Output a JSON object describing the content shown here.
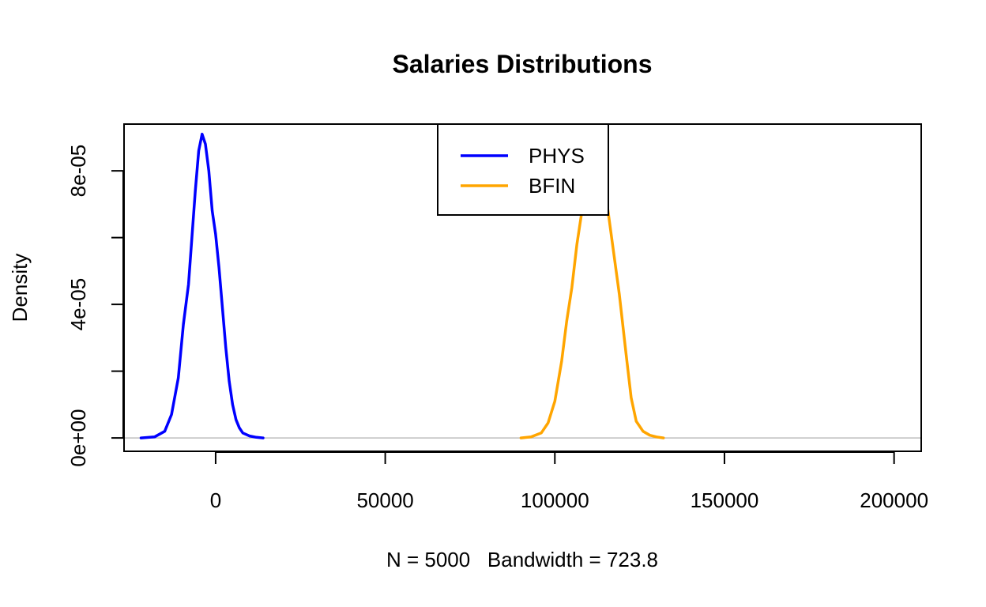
{
  "chart_data": {
    "type": "line",
    "title": "Salaries Distributions",
    "xlabel": "N = 5000   Bandwidth = 723.8",
    "ylabel": "Density",
    "xlim": [
      -27000,
      208000
    ],
    "ylim": [
      -4e-06,
      9.4e-05
    ],
    "x_ticks": [
      0,
      50000,
      100000,
      150000,
      200000
    ],
    "x_tick_labels": [
      "0",
      "50000",
      "100000",
      "150000",
      "200000"
    ],
    "y_ticks": [
      0,
      2e-05,
      4e-05,
      6e-05,
      8e-05
    ],
    "y_tick_labels": [
      "0e+00",
      "",
      "4e-05",
      "",
      "8e-05"
    ],
    "baseline": 0,
    "baseline_color": "#bebebe",
    "grid": false,
    "legend": {
      "position": "top-center",
      "entries": [
        "PHYS",
        "BFIN"
      ]
    },
    "series": [
      {
        "name": "PHYS",
        "color": "#0000ff",
        "x": [
          -22000,
          -18000,
          -15000,
          -13000,
          -11000,
          -9500,
          -8000,
          -7000,
          -6000,
          -5000,
          -4000,
          -3000,
          -2000,
          -1000,
          0,
          1000,
          2000,
          3000,
          4000,
          5000,
          6000,
          7000,
          8000,
          10000,
          12000,
          14000
        ],
        "y": [
          0.0,
          3e-07,
          2e-06,
          7e-06,
          1.8e-05,
          3.4e-05,
          4.6e-05,
          6e-05,
          7.4e-05,
          8.6e-05,
          9.1e-05,
          8.8e-05,
          8e-05,
          6.8e-05,
          6.1e-05,
          5.1e-05,
          3.9e-05,
          2.7e-05,
          1.7e-05,
          1e-05,
          5.5e-06,
          3e-06,
          1.5e-06,
          6e-07,
          2e-07,
          0.0
        ]
      },
      {
        "name": "BFIN",
        "color": "#ffa500",
        "x": [
          90000,
          93000,
          96000,
          98000,
          100000,
          102000,
          103500,
          105000,
          106500,
          108000,
          109000,
          110000,
          112000,
          115000,
          117000,
          119000,
          121000,
          122500,
          124000,
          126000,
          128000,
          130000,
          132000
        ],
        "y": [
          0.0,
          3e-07,
          1.5e-06,
          4.5e-06,
          1.1e-05,
          2.3e-05,
          3.5e-05,
          4.5e-05,
          5.8e-05,
          6.8e-05,
          7.2e-05,
          7.3e-05,
          7.3e-05,
          7.3e-05,
          5.8e-05,
          4.3e-05,
          2.5e-05,
          1.2e-05,
          5e-06,
          2e-06,
          8e-07,
          3e-07,
          0.0
        ]
      }
    ]
  }
}
